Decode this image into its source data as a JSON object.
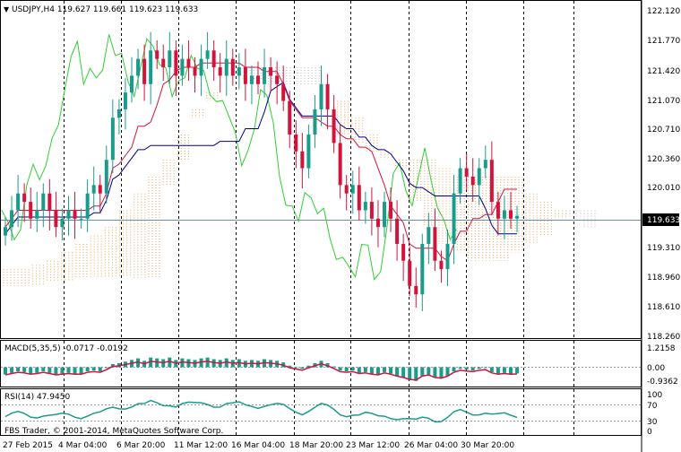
{
  "main": {
    "header": "USDJPY,H4  119.627 119.661 119.623 119.633",
    "symbol_icon": "triangle-down-icon",
    "price_levels": [
      "122.120",
      "121.770",
      "121.420",
      "121.070",
      "120.710",
      "120.360",
      "120.010",
      "119.310",
      "118.960",
      "118.610",
      "118.260"
    ],
    "price_range": [
      118.18,
      122.2
    ],
    "current_price": "119.633",
    "colors": {
      "up": "#1a9c8c",
      "down": "#d2143c",
      "tenkan": "#d2143c",
      "kijun": "#00008b",
      "chikou": "#32cd32",
      "cloud": "#f4a460",
      "price_line": "#6a8fa0"
    }
  },
  "macd": {
    "header": "MACD(5,35,5) -0.0717 -0.0192",
    "levels": [
      "1.2158",
      "0.00",
      "-0.9362"
    ],
    "colors": {
      "histogram": "#1a9c8c",
      "signal": "#d2143c"
    }
  },
  "rsi": {
    "header": "RSI(14) 47.9450",
    "levels": [
      "100",
      "70",
      "30",
      "0"
    ],
    "color": "#1a9c8c"
  },
  "footer": {
    "copyright": "FBS Trader, © 2001-2014, MetaQuotes Software Corp."
  },
  "time_axis": {
    "labels": [
      "27 Feb 2015",
      "4 Mar 04:00",
      "6 Mar 20:00",
      "11 Mar 12:00",
      "16 Mar 04:00",
      "18 Mar 20:00",
      "23 Mar 12:00",
      "26 Mar 04:00",
      "30 Mar 20:00"
    ]
  },
  "chart_data": {
    "type": "candlestick",
    "symbol": "USDJPY",
    "timeframe": "H4",
    "ohlc_last": {
      "open": 119.627,
      "high": 119.661,
      "low": 119.623,
      "close": 119.633
    },
    "close_series": [
      119.5,
      119.7,
      119.9,
      119.8,
      119.6,
      119.7,
      119.9,
      119.7,
      119.5,
      119.6,
      119.7,
      119.6,
      119.6,
      119.9,
      120.0,
      119.9,
      120.3,
      120.8,
      120.9,
      121.1,
      121.3,
      121.5,
      121.2,
      121.6,
      121.5,
      121.4,
      121.6,
      121.3,
      121.5,
      121.4,
      121.3,
      121.5,
      121.6,
      121.4,
      121.3,
      121.5,
      121.3,
      121.4,
      121.2,
      121.3,
      121.2,
      121.4,
      121.3,
      121.2,
      121.0,
      120.6,
      120.4,
      120.2,
      120.6,
      120.9,
      121.2,
      120.9,
      120.5,
      120.0,
      119.9,
      120.0,
      119.7,
      119.8,
      119.6,
      119.5,
      119.8,
      119.6,
      119.3,
      119.1,
      118.8,
      118.7,
      119.3,
      119.5,
      119.1,
      119.0,
      119.3,
      119.9,
      120.2,
      120.1,
      120.0,
      120.2,
      120.3,
      119.8,
      119.6,
      119.7,
      119.6,
      119.633
    ],
    "rsi_last": 47.945,
    "macd_last": {
      "main": -0.0717,
      "signal": -0.0192
    }
  }
}
